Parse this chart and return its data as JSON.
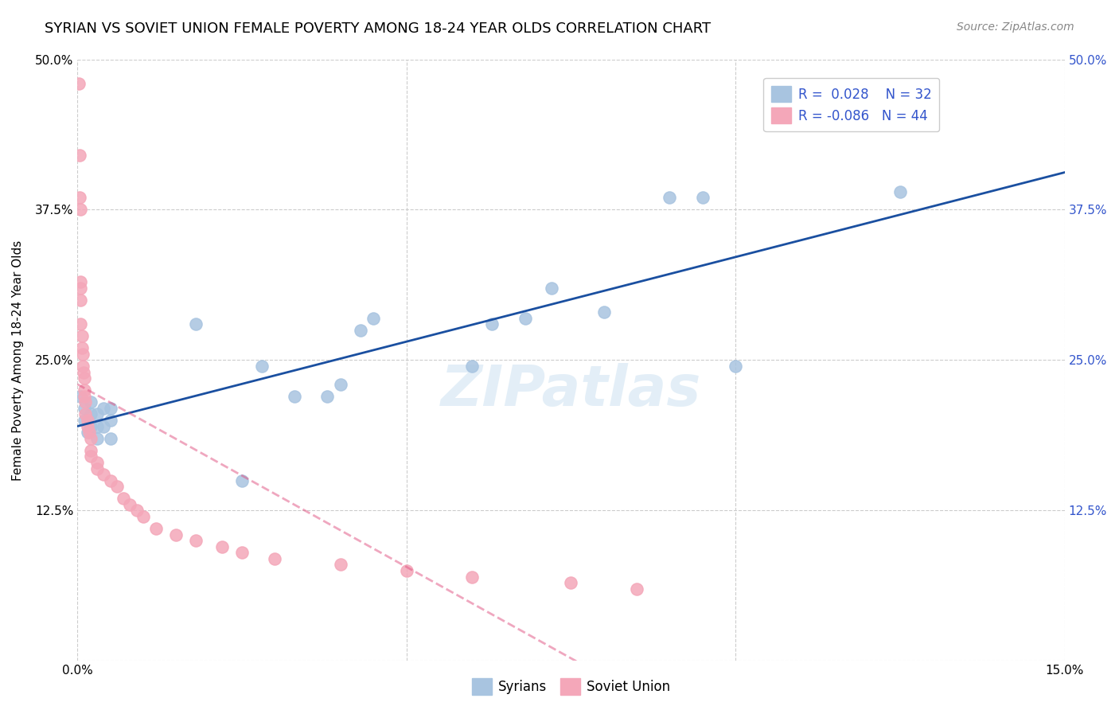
{
  "title": "SYRIAN VS SOVIET UNION FEMALE POVERTY AMONG 18-24 YEAR OLDS CORRELATION CHART",
  "source": "Source: ZipAtlas.com",
  "ylabel": "Female Poverty Among 18-24 Year Olds",
  "watermark": "ZIPatlas",
  "xlim": [
    0.0,
    0.15
  ],
  "ylim": [
    0.0,
    0.5
  ],
  "syrians_R": 0.028,
  "syrians_N": 32,
  "soviet_R": -0.086,
  "soviet_N": 44,
  "syrians_color": "#a8c4e0",
  "soviet_color": "#f4a7b9",
  "trend_syrians_color": "#1a4fa0",
  "trend_soviet_color": "#e05080",
  "background_color": "#ffffff",
  "grid_color": "#cccccc",
  "title_fontsize": 13,
  "axis_label_fontsize": 11,
  "tick_fontsize": 11,
  "legend_fontsize": 12,
  "right_ytick_color": "#3355cc",
  "syrians_x": [
    0.0005,
    0.001,
    0.001,
    0.0015,
    0.002,
    0.002,
    0.002,
    0.003,
    0.003,
    0.003,
    0.004,
    0.004,
    0.005,
    0.005,
    0.005,
    0.018,
    0.025,
    0.028,
    0.033,
    0.038,
    0.04,
    0.043,
    0.045,
    0.06,
    0.063,
    0.068,
    0.072,
    0.08,
    0.09,
    0.095,
    0.1,
    0.125
  ],
  "syrians_y": [
    0.22,
    0.21,
    0.2,
    0.19,
    0.195,
    0.205,
    0.215,
    0.185,
    0.195,
    0.205,
    0.195,
    0.21,
    0.185,
    0.2,
    0.21,
    0.28,
    0.15,
    0.245,
    0.22,
    0.22,
    0.23,
    0.275,
    0.285,
    0.245,
    0.28,
    0.285,
    0.31,
    0.29,
    0.385,
    0.385,
    0.245,
    0.39
  ],
  "soviet_x": [
    0.0002,
    0.0003,
    0.0003,
    0.0004,
    0.0004,
    0.0005,
    0.0005,
    0.0005,
    0.0007,
    0.0007,
    0.0008,
    0.0008,
    0.0009,
    0.001,
    0.001,
    0.001,
    0.0012,
    0.0012,
    0.0015,
    0.0015,
    0.0018,
    0.002,
    0.002,
    0.002,
    0.003,
    0.003,
    0.004,
    0.005,
    0.006,
    0.007,
    0.008,
    0.009,
    0.01,
    0.012,
    0.015,
    0.018,
    0.022,
    0.025,
    0.03,
    0.04,
    0.05,
    0.06,
    0.075,
    0.085
  ],
  "soviet_y": [
    0.48,
    0.42,
    0.385,
    0.375,
    0.315,
    0.31,
    0.3,
    0.28,
    0.27,
    0.26,
    0.255,
    0.245,
    0.24,
    0.235,
    0.225,
    0.22,
    0.215,
    0.205,
    0.2,
    0.195,
    0.19,
    0.185,
    0.175,
    0.17,
    0.165,
    0.16,
    0.155,
    0.15,
    0.145,
    0.135,
    0.13,
    0.125,
    0.12,
    0.11,
    0.105,
    0.1,
    0.095,
    0.09,
    0.085,
    0.08,
    0.075,
    0.07,
    0.065,
    0.06
  ]
}
